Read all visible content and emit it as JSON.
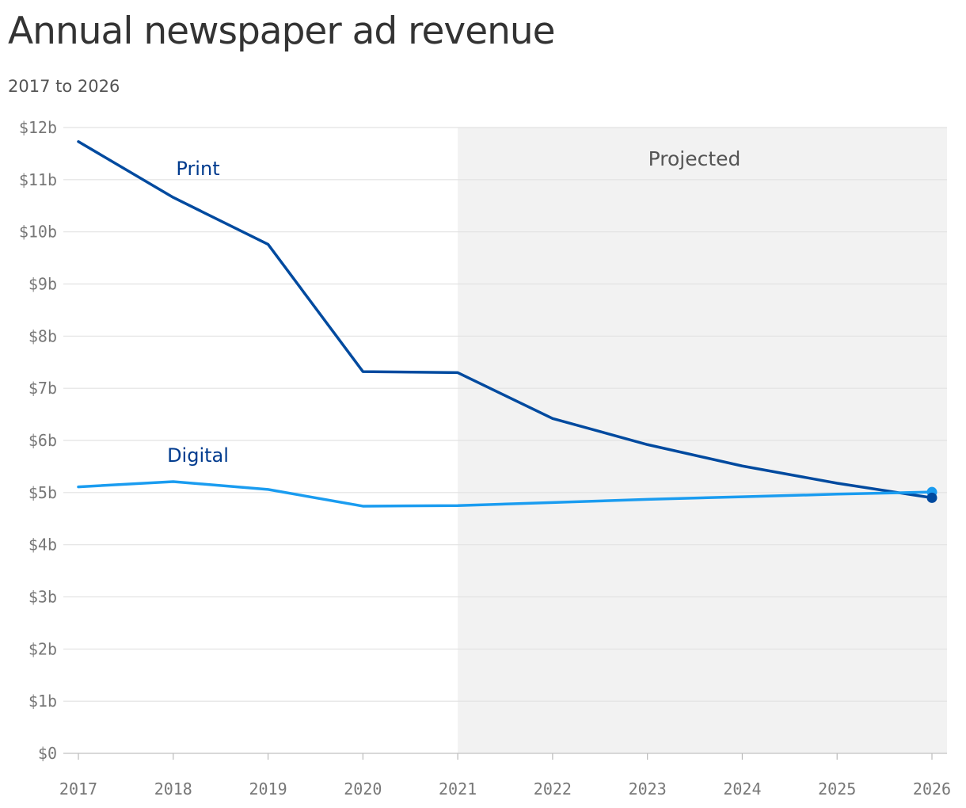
{
  "title": "Annual newspaper ad revenue",
  "subtitle": "2017 to 2026",
  "chart_data": {
    "type": "line",
    "title": "Annual newspaper ad revenue",
    "subtitle": "2017 to 2026",
    "xlabel": "",
    "ylabel": "",
    "x": [
      2017,
      2018,
      2019,
      2020,
      2021,
      2022,
      2023,
      2024,
      2025,
      2026
    ],
    "x_tick_labels": [
      "2017",
      "2018",
      "2019",
      "2020",
      "2021",
      "2022",
      "2023",
      "2024",
      "2025",
      "2026"
    ],
    "y_ticks": [
      0,
      1,
      2,
      3,
      4,
      5,
      6,
      7,
      8,
      9,
      10,
      11,
      12
    ],
    "y_tick_labels": [
      "$0",
      "$1b",
      "$2b",
      "$3b",
      "$4b",
      "$5b",
      "$6b",
      "$7b",
      "$8b",
      "$9b",
      "$10b",
      "$11b",
      "$12b"
    ],
    "ylim": [
      0,
      12
    ],
    "unit": "billions of dollars",
    "grid": true,
    "legend": "direct labels on lines",
    "projected_region": {
      "label": "Projected",
      "from": 2021,
      "to": 2026,
      "color": "#f2f2f2"
    },
    "series": [
      {
        "name": "Print",
        "color": "#004a9f",
        "values": [
          11.73,
          10.66,
          9.76,
          7.32,
          7.3,
          6.42,
          5.92,
          5.51,
          5.18,
          4.9
        ]
      },
      {
        "name": "Digital",
        "color": "#1a9cf0",
        "values": [
          5.11,
          5.21,
          5.06,
          4.74,
          4.75,
          4.81,
          4.87,
          4.92,
          4.97,
          5.01
        ]
      }
    ],
    "label_color": "#003b8e"
  }
}
